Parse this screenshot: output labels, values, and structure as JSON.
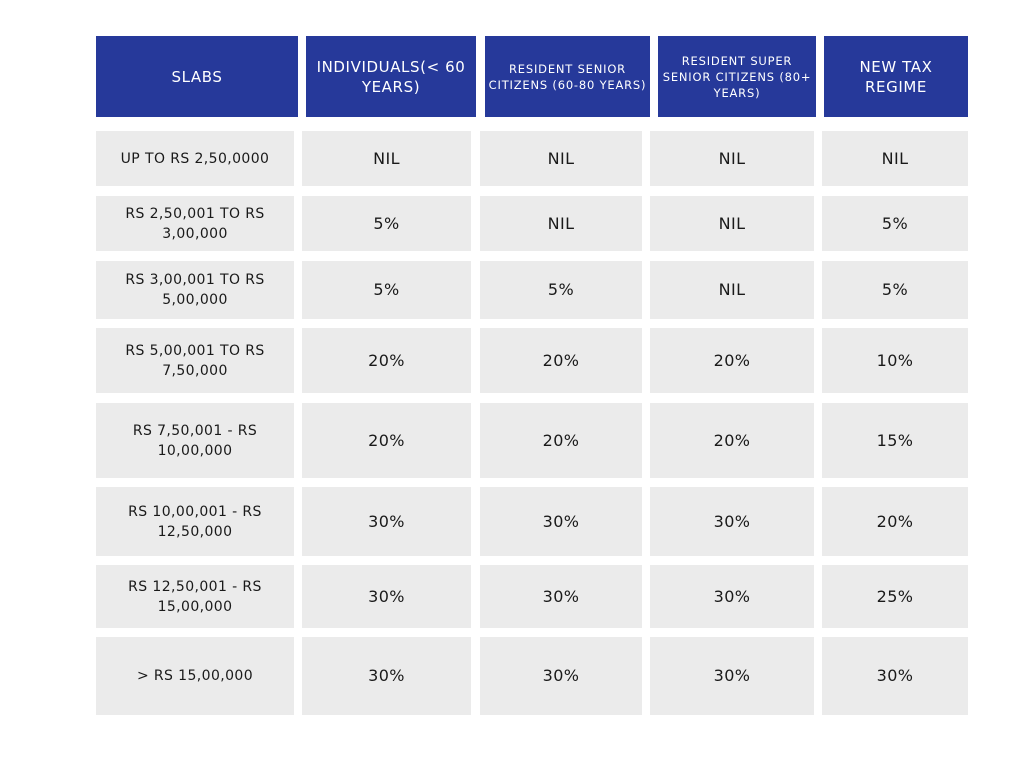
{
  "table": {
    "headers": [
      "SLABS",
      "INDIVIDUALS(< 60 YEARS)",
      "RESIDENT SENIOR CITIZENS (60-80 YEARS)",
      "RESIDENT SUPER SENIOR CITIZENS (80+ YEARS)",
      "NEW TAX REGIME"
    ],
    "rows": [
      [
        "UP TO RS 2,50,0000",
        "NIL",
        "NIL",
        "NIL",
        "NIL"
      ],
      [
        "RS 2,50,001 TO RS 3,00,000",
        "5%",
        "NIL",
        "NIL",
        "5%"
      ],
      [
        "RS 3,00,001 TO RS 5,00,000",
        "5%",
        "5%",
        "NIL",
        "5%"
      ],
      [
        "RS 5,00,001 TO RS 7,50,000",
        "20%",
        "20%",
        "20%",
        "10%"
      ],
      [
        "RS 7,50,001 - RS 10,00,000",
        "20%",
        "20%",
        "20%",
        "15%"
      ],
      [
        "RS 10,00,001 - RS 12,50,000",
        "30%",
        "30%",
        "30%",
        "20%"
      ],
      [
        "RS 12,50,001 - RS 15,00,000",
        "30%",
        "30%",
        "30%",
        "25%"
      ],
      [
        "> RS 15,00,000",
        "30%",
        "30%",
        "30%",
        "30%"
      ]
    ]
  },
  "colors": {
    "header_bg": "#26399a",
    "header_text": "#ffffff",
    "cell_bg": "#ebebeb",
    "cell_text": "#1a1a1a"
  }
}
